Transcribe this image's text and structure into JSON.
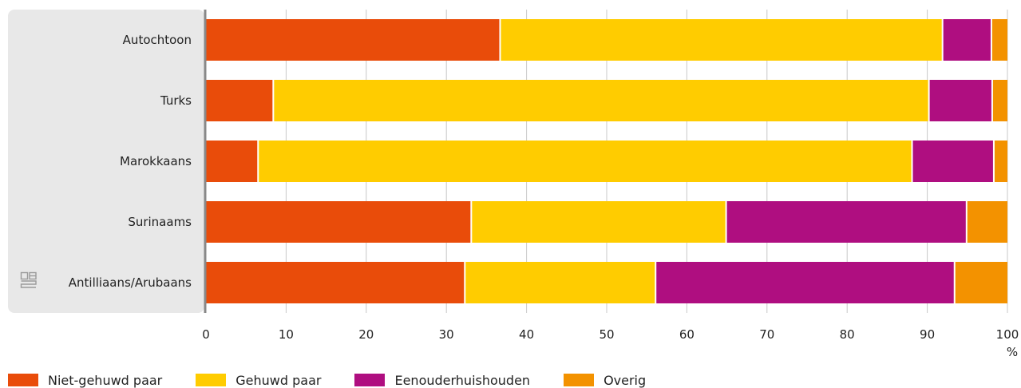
{
  "chart_data": {
    "type": "bar",
    "orientation": "horizontal",
    "stacked": true,
    "categories": [
      "Autochtoon",
      "Turks",
      "Marokkaans",
      "Surinaams",
      "Antilliaans/Arubaans"
    ],
    "series": [
      {
        "name": "Niet-gehuwd paar",
        "color": "#E94C0A",
        "values": [
          36.7,
          8.4,
          6.5,
          33.1,
          32.3
        ]
      },
      {
        "name": "Gehuwd paar",
        "color": "#FFCC00",
        "values": [
          55.2,
          81.8,
          81.6,
          31.8,
          23.8
        ]
      },
      {
        "name": "Eenouderhuishouden",
        "color": "#AF0E80",
        "values": [
          6.1,
          7.9,
          10.2,
          30.0,
          37.3
        ]
      },
      {
        "name": "Overig",
        "color": "#F39200",
        "values": [
          2.0,
          1.9,
          1.7,
          5.1,
          6.6
        ]
      }
    ],
    "xlim": [
      0,
      100
    ],
    "xticks": [
      0,
      10,
      20,
      30,
      40,
      50,
      60,
      70,
      80,
      90,
      100
    ],
    "xunit": "%",
    "grid": true,
    "legend_position": "bottom-left",
    "logo_icon": "cbs-logo-icon"
  }
}
